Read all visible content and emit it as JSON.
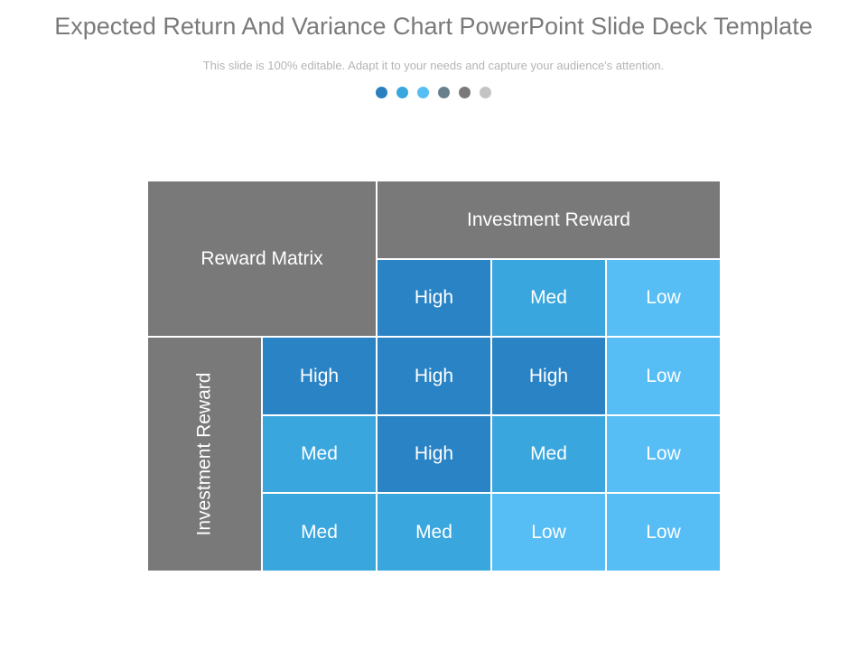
{
  "header": {
    "title": "Expected Return And Variance Chart PowerPoint Slide Deck Template",
    "subtitle": "This slide is 100% editable. Adapt it to your needs and capture your audience's attention."
  },
  "dots": [
    "#2a7fbf",
    "#3aa6de",
    "#57bdf5",
    "#6a7f8c",
    "#7a7a7a",
    "#c4c4c4"
  ],
  "colors": {
    "header_gray": "#797979",
    "high": "#2a83c5",
    "med": "#3aa6de",
    "low": "#57bdf5"
  },
  "matrix": {
    "corner_label": "Reward Matrix",
    "column_header": "Investment Reward",
    "row_header": "Investment Reward",
    "columns": [
      "High",
      "Med",
      "Low"
    ],
    "rows": [
      {
        "label": "High",
        "values": [
          "High",
          "High",
          "Low"
        ]
      },
      {
        "label": "Med",
        "values": [
          "High",
          "Med",
          "Low"
        ]
      },
      {
        "label": "Med",
        "values": [
          "Med",
          "Low",
          "Low"
        ]
      }
    ]
  }
}
